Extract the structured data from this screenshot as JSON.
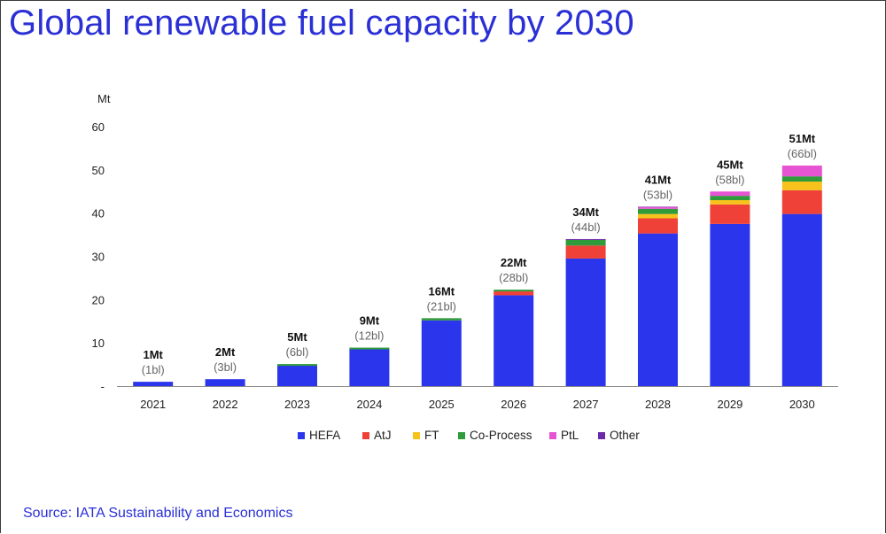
{
  "title": "Global renewable fuel capacity by 2030",
  "source": "Source: IATA Sustainability and Economics",
  "chart_data": {
    "type": "bar",
    "stacked": true,
    "unit_label": "Mt",
    "categories": [
      "2021",
      "2022",
      "2023",
      "2024",
      "2025",
      "2026",
      "2027",
      "2028",
      "2029",
      "2030"
    ],
    "ylim": [
      0,
      60
    ],
    "yticks": [
      {
        "value": 0,
        "label": "-"
      },
      {
        "value": 10,
        "label": "10"
      },
      {
        "value": 20,
        "label": "20"
      },
      {
        "value": 30,
        "label": "30"
      },
      {
        "value": 40,
        "label": "40"
      },
      {
        "value": 50,
        "label": "50"
      },
      {
        "value": 60,
        "label": "60"
      }
    ],
    "grid": false,
    "legend_position": "bottom",
    "series": [
      {
        "name": "HEFA",
        "color": "#2a35ec",
        "values": [
          1.0,
          1.6,
          4.7,
          8.5,
          15.2,
          21.0,
          29.5,
          35.3,
          37.5,
          39.8
        ]
      },
      {
        "name": "AtJ",
        "color": "#ef4138",
        "values": [
          0,
          0,
          0,
          0,
          0,
          0.9,
          3.0,
          3.5,
          4.5,
          5.5
        ]
      },
      {
        "name": "FT",
        "color": "#f7c21c",
        "values": [
          0,
          0,
          0,
          0,
          0,
          0,
          0,
          1.0,
          1.0,
          2.0
        ]
      },
      {
        "name": "Co-Process",
        "color": "#2f9b3a",
        "values": [
          0,
          0,
          0.4,
          0.4,
          0.5,
          0.4,
          1.3,
          1.2,
          1.0,
          1.2
        ]
      },
      {
        "name": "PtL",
        "color": "#e653d3",
        "values": [
          0,
          0,
          0,
          0,
          0,
          0,
          0,
          0.4,
          1.0,
          2.5
        ]
      },
      {
        "name": "Other",
        "color": "#6b2aa8",
        "values": [
          0,
          0,
          0,
          0,
          0,
          0,
          0.2,
          0.1,
          0,
          0
        ]
      }
    ],
    "data_labels": [
      {
        "total": "1Mt",
        "sub": "(1bl)"
      },
      {
        "total": "2Mt",
        "sub": "(3bl)"
      },
      {
        "total": "5Mt",
        "sub": "(6bl)"
      },
      {
        "total": "9Mt",
        "sub": "(12bl)"
      },
      {
        "total": "16Mt",
        "sub": "(21bl)"
      },
      {
        "total": "22Mt",
        "sub": "(28bl)"
      },
      {
        "total": "34Mt",
        "sub": "(44bl)"
      },
      {
        "total": "41Mt",
        "sub": "(53bl)"
      },
      {
        "total": "45Mt",
        "sub": "(58bl)"
      },
      {
        "total": "51Mt",
        "sub": "(66bl)"
      }
    ]
  }
}
